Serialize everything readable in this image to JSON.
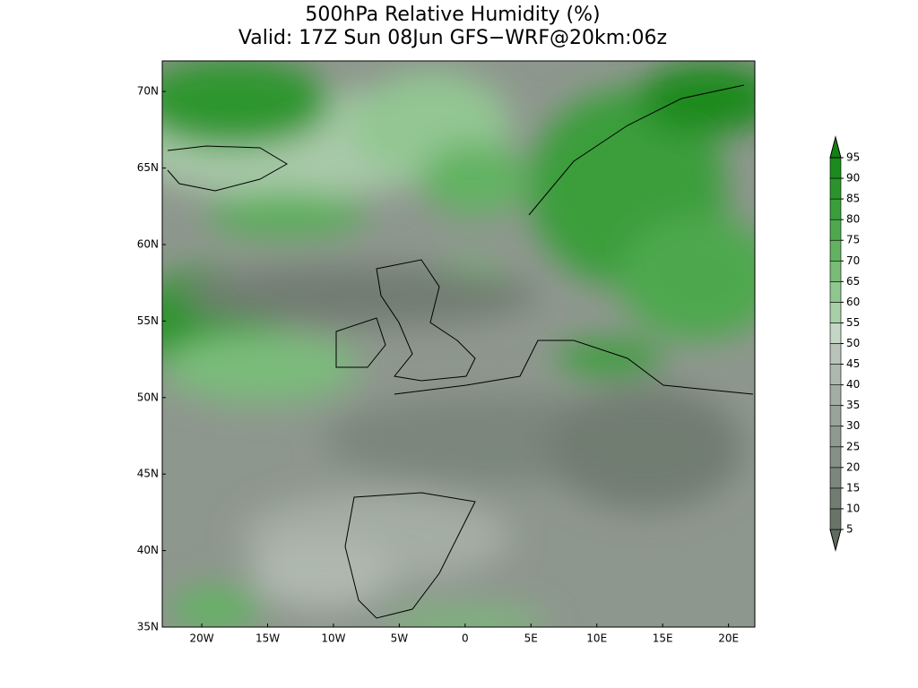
{
  "title": "500hPa Relative Humidity (%)",
  "subtitle": "Valid: 17Z Sun 08Jun GFS−WRF@20km:06z",
  "map": {
    "xlim": [
      -23,
      22
    ],
    "ylim": [
      35,
      72
    ],
    "xticks": [
      {
        "value": -20,
        "label": "20W"
      },
      {
        "value": -15,
        "label": "15W"
      },
      {
        "value": -10,
        "label": "10W"
      },
      {
        "value": -5,
        "label": "5W"
      },
      0,
      {
        "value": 5,
        "label": "5E"
      },
      {
        "value": 10,
        "label": "10E"
      },
      {
        "value": 15,
        "label": "15E"
      },
      {
        "value": 20,
        "label": "20E"
      }
    ],
    "yticks": [
      {
        "value": 35,
        "label": "35N"
      },
      {
        "value": 40,
        "label": "40N"
      },
      {
        "value": 45,
        "label": "45N"
      },
      {
        "value": 50,
        "label": "50N"
      },
      {
        "value": 55,
        "label": "55N"
      },
      {
        "value": 60,
        "label": "60N"
      },
      {
        "value": 65,
        "label": "65N"
      },
      {
        "value": 70,
        "label": "70N"
      }
    ]
  },
  "colorbar": {
    "levels": [
      5,
      10,
      15,
      20,
      25,
      30,
      35,
      40,
      45,
      50,
      55,
      60,
      65,
      70,
      75,
      80,
      85,
      90,
      95
    ],
    "colors": [
      "#5f6b5f",
      "#687468",
      "#727d72",
      "#7c867c",
      "#869086",
      "#909990",
      "#9aa39a",
      "#a4ada4",
      "#afb8af",
      "#bac3ba",
      "#c6d6c6",
      "#a8d0a8",
      "#90c690",
      "#78bc78",
      "#62b262",
      "#4ea84e",
      "#3a9e3a",
      "#2a942a",
      "#1c8a1c",
      "#128012"
    ]
  }
}
